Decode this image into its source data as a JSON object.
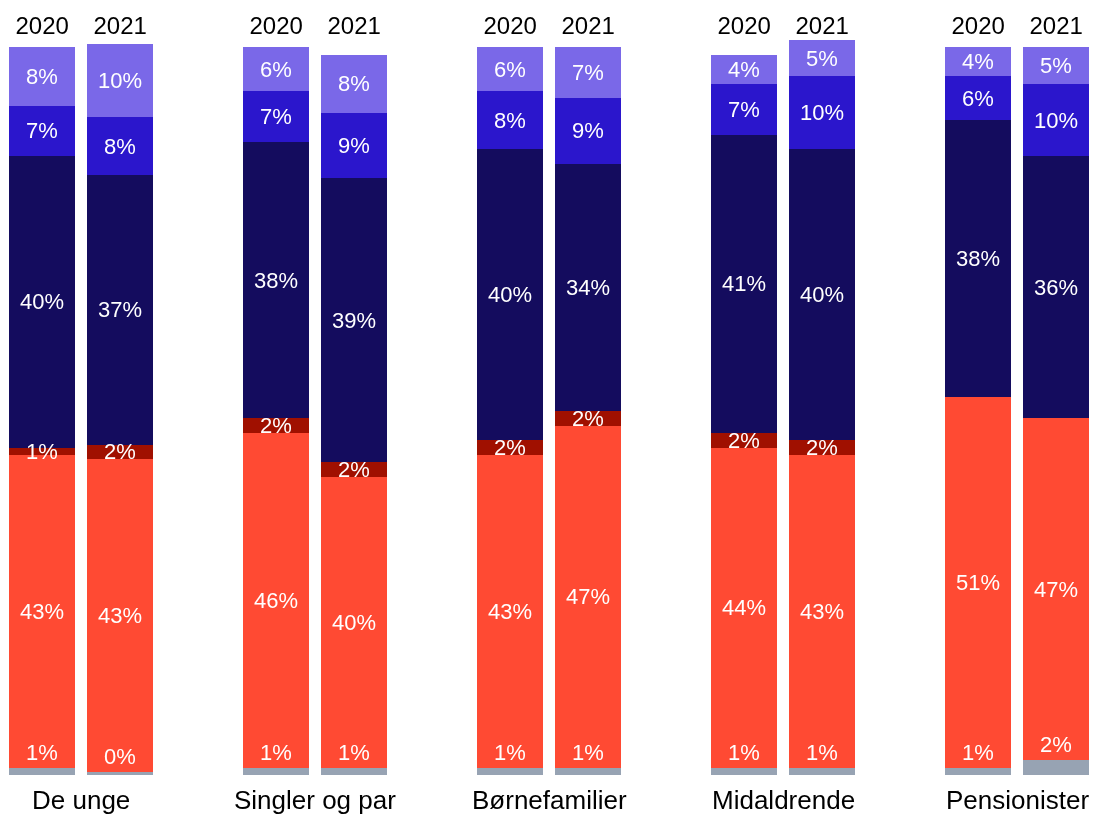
{
  "chart_data": {
    "type": "bar",
    "stacked": true,
    "categories": [
      "2020",
      "2021",
      "2020",
      "2021",
      "2020",
      "2021",
      "2020",
      "2021",
      "2020",
      "2021"
    ],
    "annotations": [
      "De unge",
      "Singler og par",
      "Børnefamilier",
      "Midaldrende",
      "Pensionister"
    ],
    "ylim": [
      0,
      101
    ],
    "series": [
      {
        "color": "#97a3b3",
        "values": [
          1,
          0.4,
          1,
          1,
          1,
          1,
          1,
          1,
          1,
          2
        ],
        "value_labels": [
          "1%",
          "0%",
          "1%",
          "1%",
          "1%",
          "1%",
          "1%",
          "1%",
          "1%",
          "2%"
        ]
      },
      {
        "color": "#ff4a33",
        "values": [
          43,
          43,
          46,
          40,
          43,
          47,
          44,
          43,
          51,
          47
        ],
        "value_labels": [
          "43%",
          "43%",
          "46%",
          "40%",
          "43%",
          "47%",
          "44%",
          "43%",
          "51%",
          "47%"
        ]
      },
      {
        "color": "#a01000",
        "values": [
          1,
          2,
          2,
          2,
          2,
          2,
          2,
          2,
          0,
          0
        ],
        "value_labels": [
          "1%",
          "2%",
          "2%",
          "2%",
          "2%",
          "2%",
          "2%",
          "2%",
          null,
          null
        ]
      },
      {
        "color": "#140c5e",
        "values": [
          40,
          37,
          38,
          39,
          40,
          34,
          41,
          40,
          38,
          36
        ],
        "value_labels": [
          "40%",
          "37%",
          "38%",
          "39%",
          "40%",
          "34%",
          "41%",
          "40%",
          "38%",
          "36%"
        ]
      },
      {
        "color": "#2b16cc",
        "values": [
          7,
          8,
          7,
          9,
          8,
          9,
          7,
          10,
          6,
          10
        ],
        "value_labels": [
          "7%",
          "8%",
          "7%",
          "9%",
          "8%",
          "9%",
          "7%",
          "10%",
          "6%",
          "10%"
        ]
      },
      {
        "color": "#7a68e8",
        "values": [
          8,
          10,
          6,
          8,
          6,
          7,
          4,
          5,
          4,
          5
        ],
        "value_labels": [
          "8%",
          "10%",
          "6%",
          "8%",
          "6%",
          "7%",
          "4%",
          "5%",
          "4%",
          "5%"
        ]
      }
    ],
    "legend": false
  }
}
